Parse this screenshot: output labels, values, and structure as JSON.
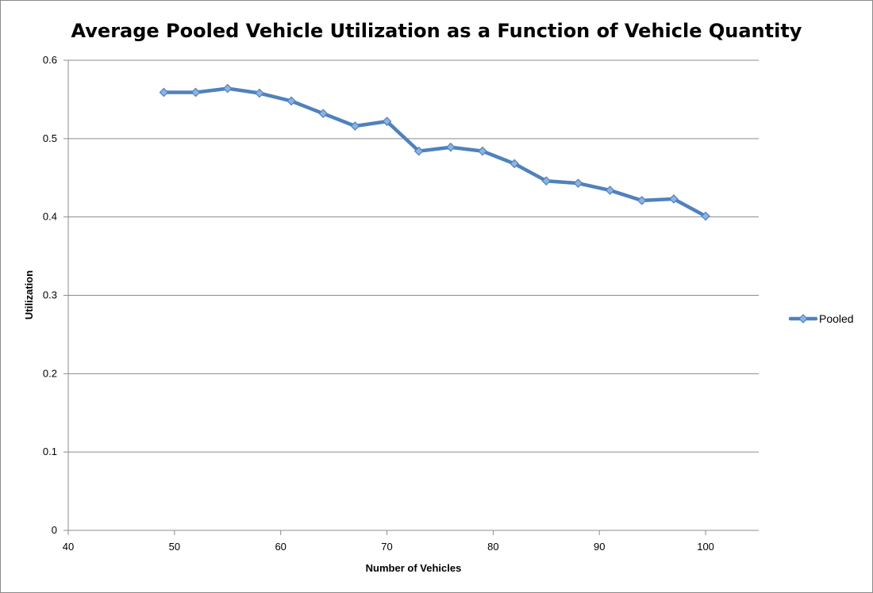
{
  "chart_data": {
    "type": "line",
    "title": "Average Pooled Vehicle Utilization as a Function of Vehicle Quantity",
    "xlabel": "Number of Vehicles",
    "ylabel": "Utilization",
    "xlim": [
      40,
      105
    ],
    "ylim": [
      0,
      0.6
    ],
    "xticks": [
      40,
      50,
      60,
      70,
      80,
      90,
      100
    ],
    "yticks": [
      0,
      0.1,
      0.2,
      0.3,
      0.4,
      0.5,
      0.6
    ],
    "xtick_labels": [
      "40",
      "50",
      "60",
      "70",
      "80",
      "90",
      "100"
    ],
    "ytick_labels": [
      "0",
      "0.1",
      "0.2",
      "0.3",
      "0.4",
      "0.5",
      "0.6"
    ],
    "grid": "horizontal",
    "legend_position": "right",
    "series": [
      {
        "name": "Pooled",
        "color": "#4f81bd",
        "marker": "diamond",
        "x": [
          49,
          52,
          55,
          58,
          61,
          64,
          67,
          70,
          73,
          76,
          79,
          82,
          85,
          88,
          91,
          94,
          97,
          100
        ],
        "y": [
          0.559,
          0.559,
          0.564,
          0.558,
          0.548,
          0.532,
          0.516,
          0.522,
          0.484,
          0.489,
          0.484,
          0.468,
          0.446,
          0.443,
          0.434,
          0.421,
          0.423,
          0.401
        ]
      }
    ]
  }
}
